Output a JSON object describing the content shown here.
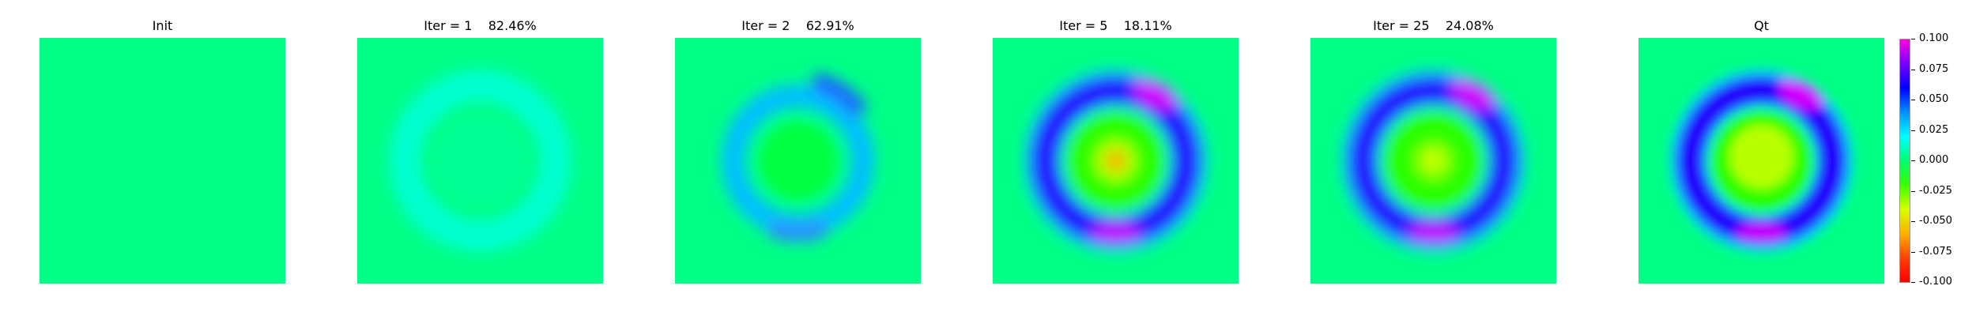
{
  "chart_data": {
    "type": "heatmap",
    "panels": [
      {
        "title": "Init",
        "amplitude": 0.0
      },
      {
        "title": "Iter = 1    82.46%",
        "amplitude": 0.2
      },
      {
        "title": "Iter = 2    62.91%",
        "amplitude": 0.45
      },
      {
        "title": "Iter = 5    18.11%",
        "amplitude": 1.0
      },
      {
        "title": "Iter = 25    24.08%",
        "amplitude": 1.0
      },
      {
        "title": "Qt",
        "amplitude": 1.0
      }
    ],
    "colorbar": {
      "ticks": [
        "0.100",
        "0.075",
        "0.050",
        "0.025",
        "0.000",
        "-0.025",
        "-0.050",
        "-0.075",
        "-0.100"
      ],
      "range": [
        -0.1,
        0.1
      ],
      "colormap": "gist_rainbow (reversed)",
      "stops": [
        "#ff00e0",
        "#7a00ff",
        "#0000ff",
        "#0090ff",
        "#00ffff",
        "#00ff6f",
        "#3aff00",
        "#d6ff00",
        "#ffb000",
        "#ff4000",
        "#ff0000"
      ]
    },
    "grid": false
  }
}
